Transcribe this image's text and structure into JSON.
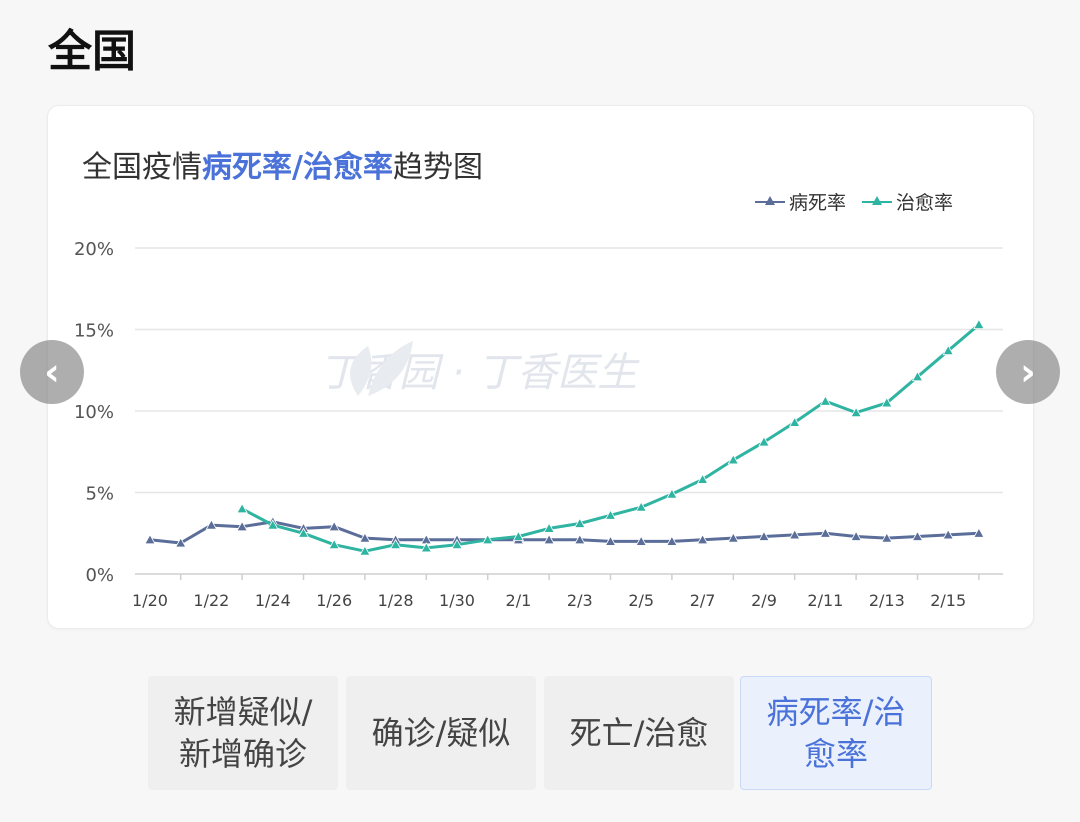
{
  "page": {
    "title": "全国"
  },
  "chart_card": {
    "title_prefix": "全国疫情",
    "title_highlight": "病死率/治愈率",
    "title_suffix": "趋势图",
    "watermark": "丁香园 · 丁香医生"
  },
  "navigation": {
    "prev_icon": "chevron-left-icon",
    "next_icon": "chevron-right-icon"
  },
  "tabs": [
    {
      "label": "新增疑似/\n新增确诊",
      "active": false
    },
    {
      "label": "确诊/疑似",
      "active": false
    },
    {
      "label": "死亡/治愈",
      "active": false
    },
    {
      "label": "病死率/治\n愈率",
      "active": true
    }
  ],
  "colors": {
    "fatality": "#5b6d99",
    "recovery": "#2fb4a2",
    "highlight": "#4a72d9"
  },
  "chart_data": {
    "type": "line",
    "title": "全国疫情病死率/治愈率趋势图",
    "x": [
      "1/20",
      "1/21",
      "1/22",
      "1/23",
      "1/24",
      "1/25",
      "1/26",
      "1/27",
      "1/28",
      "1/29",
      "1/30",
      "1/31",
      "2/1",
      "2/2",
      "2/3",
      "2/4",
      "2/5",
      "2/6",
      "2/7",
      "2/8",
      "2/9",
      "2/10",
      "2/11",
      "2/12",
      "2/13",
      "2/14",
      "2/15",
      "2/16"
    ],
    "x_ticks": [
      "1/20",
      "1/22",
      "1/24",
      "1/26",
      "1/28",
      "1/30",
      "2/1",
      "2/3",
      "2/5",
      "2/7",
      "2/9",
      "2/11",
      "2/13",
      "2/15"
    ],
    "y_ticks": [
      "0%",
      "5%",
      "10%",
      "15%",
      "20%"
    ],
    "ylim": [
      0,
      20
    ],
    "y_unit": "%",
    "grid": true,
    "legend_position": "top-right",
    "series": [
      {
        "name": "病死率",
        "color": "#5b6d99",
        "values": [
          2.1,
          1.9,
          3.0,
          2.9,
          3.2,
          2.8,
          2.9,
          2.2,
          2.1,
          2.1,
          2.1,
          2.1,
          2.1,
          2.1,
          2.1,
          2.0,
          2.0,
          2.0,
          2.1,
          2.2,
          2.3,
          2.4,
          2.5,
          2.3,
          2.2,
          2.3,
          2.4,
          2.5
        ]
      },
      {
        "name": "治愈率",
        "color": "#2fb4a2",
        "values": [
          null,
          null,
          null,
          4.0,
          3.0,
          2.5,
          1.8,
          1.4,
          1.8,
          1.6,
          1.8,
          2.1,
          2.3,
          2.8,
          3.1,
          3.6,
          4.1,
          4.9,
          5.8,
          7.0,
          8.1,
          9.3,
          10.6,
          9.9,
          10.5,
          12.1,
          13.7,
          15.3
        ]
      }
    ]
  }
}
